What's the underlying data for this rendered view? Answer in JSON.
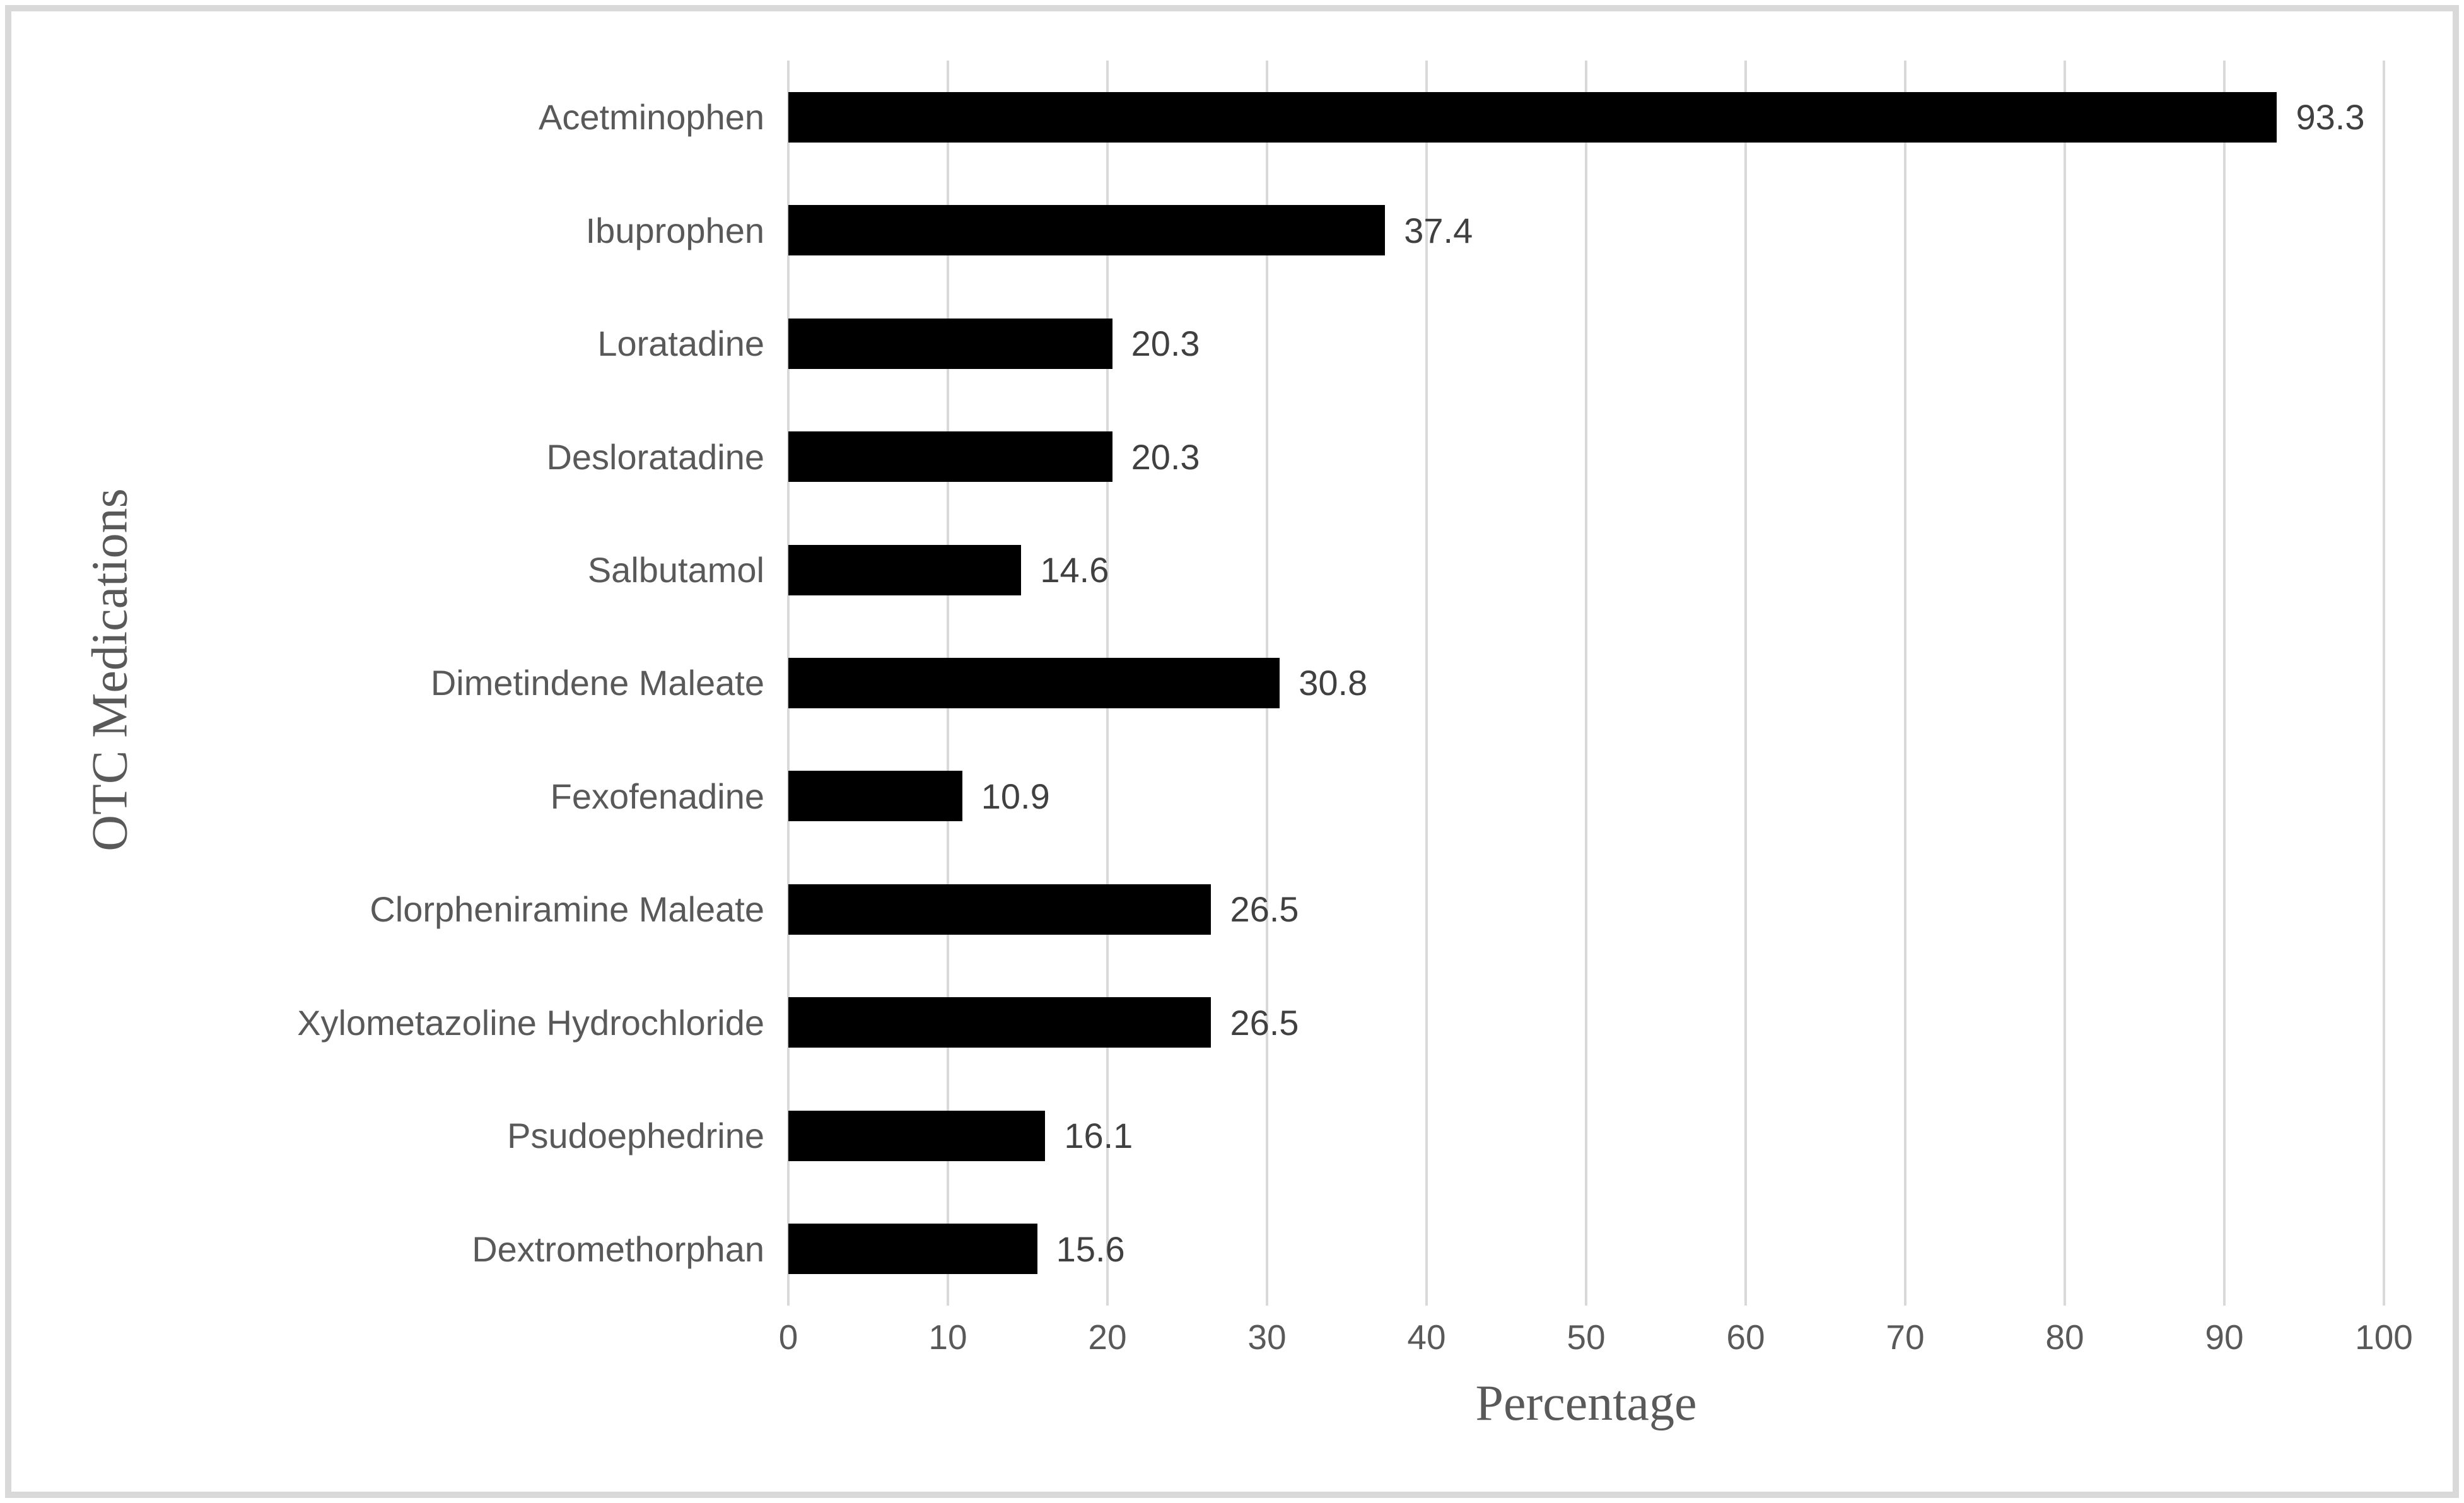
{
  "chart_data": {
    "type": "bar",
    "orientation": "horizontal",
    "categories": [
      "Acetminophen",
      "Ibuprophen",
      "Loratadine",
      "Desloratadine",
      "Salbutamol",
      "Dimetindene Maleate",
      "Fexofenadine",
      "Clorpheniramine Maleate",
      "Xylometazoline Hydrochloride",
      "Psudoephedrine",
      "Dextromethorphan"
    ],
    "values": [
      93.3,
      37.4,
      20.3,
      20.3,
      14.6,
      30.8,
      10.9,
      26.5,
      26.5,
      16.1,
      15.6
    ],
    "value_labels": [
      "93.3",
      "37.4",
      "20.3",
      "20.3",
      "14.6",
      "30.8",
      "10.9",
      "26.5",
      "26.5",
      "16.1",
      "15.6"
    ],
    "title": "",
    "xlabel": "Percentage",
    "ylabel": "OTC Medications",
    "xlim": [
      0,
      100
    ],
    "xticks": [
      0,
      10,
      20,
      30,
      40,
      50,
      60,
      70,
      80,
      90,
      100
    ],
    "grid": "vertical",
    "legend": "none",
    "colors": {
      "bar": "#000000",
      "gridline": "#d9d9d9",
      "category_label": "#595959",
      "value_label": "#404040",
      "tick_label": "#595959",
      "axis_title": "#595959",
      "frame_border": "#d9d9d9",
      "background": "#ffffff"
    }
  }
}
